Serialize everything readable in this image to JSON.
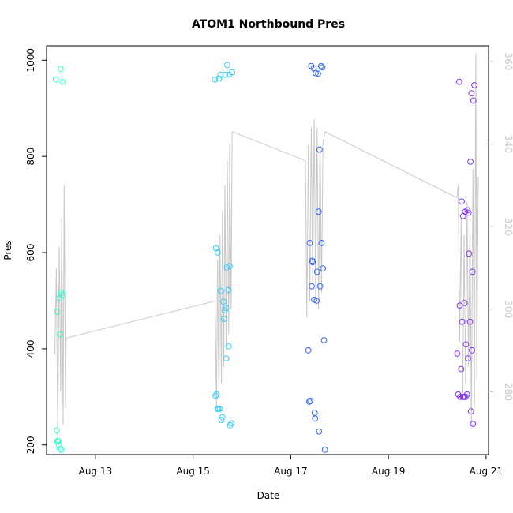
{
  "chart_data": {
    "type": "scatter",
    "title": "ATOM1 Northbound Pres",
    "xlabel": "Date",
    "ylabel": "Pres",
    "x_ticks": [
      "Aug 13",
      "Aug 15",
      "Aug 17",
      "Aug 19",
      "Aug 21"
    ],
    "x_tick_days": [
      13,
      15,
      17,
      19,
      21
    ],
    "xlim_days": [
      12.0,
      21.05
    ],
    "y_ticks": [
      200,
      400,
      600,
      800,
      1000
    ],
    "ylim": [
      180,
      1030
    ],
    "y2_ticks": [
      280,
      300,
      320,
      340,
      360
    ],
    "y2lim": [
      264.8,
      363.8
    ],
    "grid": false,
    "colors": {
      "day12": "#33ffcc",
      "day15": "#33ccff",
      "day17": "#3366ff",
      "day20": "#7f33ff",
      "line": "#c8c8c8",
      "right_axis": "#c8c8c8"
    },
    "series": [
      {
        "color_key": "day12",
        "x": [
          12.19,
          12.21,
          12.22,
          12.23,
          12.24,
          12.25,
          12.26,
          12.28,
          12.29,
          12.3,
          12.32,
          12.33,
          12.27,
          12.3,
          12.22
        ],
        "y": [
          960,
          230,
          208,
          208,
          207,
          200,
          505,
          430,
          982,
          517,
          512,
          955,
          192,
          190,
          477
        ]
      },
      {
        "color_key": "day15",
        "x": [
          15.45,
          15.46,
          15.48,
          15.5,
          15.52,
          15.53,
          15.55,
          15.56,
          15.58,
          15.6,
          15.62,
          15.63,
          15.65,
          15.66,
          15.67,
          15.69,
          15.7,
          15.72,
          15.74,
          15.75,
          15.76,
          15.78,
          15.8,
          15.47,
          15.5,
          15.57,
          15.68,
          15.73
        ],
        "y": [
          960,
          302,
          305,
          275,
          275,
          962,
          275,
          970,
          252,
          258,
          498,
          462,
          480,
          970,
          485,
          569,
          990,
          522,
          970,
          572,
          241,
          245,
          975,
          609,
          600,
          520,
          380,
          405
        ]
      },
      {
        "color_key": "day17",
        "x": [
          17.36,
          17.38,
          17.4,
          17.42,
          17.44,
          17.45,
          17.47,
          17.48,
          17.5,
          17.51,
          17.53,
          17.54,
          17.56,
          17.57,
          17.59,
          17.6,
          17.62,
          17.63,
          17.65,
          17.66,
          17.68,
          17.7,
          17.39,
          17.43,
          17.49,
          17.58
        ],
        "y": [
          397,
          290,
          292,
          988,
          583,
          580,
          983,
          502,
          255,
          973,
          500,
          560,
          972,
          685,
          814,
          530,
          988,
          620,
          985,
          567,
          418,
          190,
          620,
          530,
          267,
          228
        ]
      },
      {
        "color_key": "day20",
        "x": [
          20.41,
          20.43,
          20.45,
          20.47,
          20.49,
          20.5,
          20.52,
          20.53,
          20.55,
          20.56,
          20.58,
          20.59,
          20.61,
          20.62,
          20.64,
          20.65,
          20.67,
          20.68,
          20.7,
          20.71,
          20.73,
          20.74,
          20.76,
          20.46,
          20.51,
          20.57,
          20.63,
          20.69,
          20.72,
          20.54
        ],
        "y": [
          390,
          305,
          955,
          300,
          358,
          706,
          300,
          676,
          300,
          495,
          300,
          409,
          305,
          688,
          683,
          598,
          456,
          789,
          931,
          397,
          244,
          916,
          948,
          490,
          456,
          685,
          380,
          270,
          560,
          300
        ]
      }
    ],
    "overlay_line": {
      "axis": "right",
      "color_key": "line",
      "points": [
        [
          12.17,
          289
        ],
        [
          12.2,
          310
        ],
        [
          12.23,
          268
        ],
        [
          12.26,
          315
        ],
        [
          12.29,
          280
        ],
        [
          12.31,
          322
        ],
        [
          12.34,
          272
        ],
        [
          12.36,
          330
        ],
        [
          12.39,
          276
        ],
        [
          12.4,
          293
        ],
        [
          15.45,
          302
        ],
        [
          15.48,
          276
        ],
        [
          15.5,
          312
        ],
        [
          15.53,
          278
        ],
        [
          15.55,
          318
        ],
        [
          15.58,
          282
        ],
        [
          15.6,
          324
        ],
        [
          15.63,
          286
        ],
        [
          15.65,
          330
        ],
        [
          15.68,
          290
        ],
        [
          15.7,
          336
        ],
        [
          15.73,
          294
        ],
        [
          15.75,
          340
        ],
        [
          15.78,
          300
        ],
        [
          15.8,
          343
        ],
        [
          17.3,
          336
        ],
        [
          17.33,
          298
        ],
        [
          17.36,
          340
        ],
        [
          17.39,
          302
        ],
        [
          17.42,
          344
        ],
        [
          17.45,
          306
        ],
        [
          17.48,
          346
        ],
        [
          17.51,
          302
        ],
        [
          17.54,
          344
        ],
        [
          17.57,
          300
        ],
        [
          17.6,
          342
        ],
        [
          17.63,
          304
        ],
        [
          17.66,
          340
        ],
        [
          17.7,
          343
        ],
        [
          20.4,
          327
        ],
        [
          20.43,
          330
        ],
        [
          20.46,
          292
        ],
        [
          20.49,
          322
        ],
        [
          20.52,
          278
        ],
        [
          20.55,
          318
        ],
        [
          20.58,
          282
        ],
        [
          20.61,
          326
        ],
        [
          20.64,
          286
        ],
        [
          20.67,
          322
        ],
        [
          20.7,
          272
        ],
        [
          20.73,
          334
        ],
        [
          20.76,
          276
        ],
        [
          20.79,
          362
        ],
        [
          20.81,
          283
        ],
        [
          20.84,
          332
        ]
      ]
    }
  }
}
